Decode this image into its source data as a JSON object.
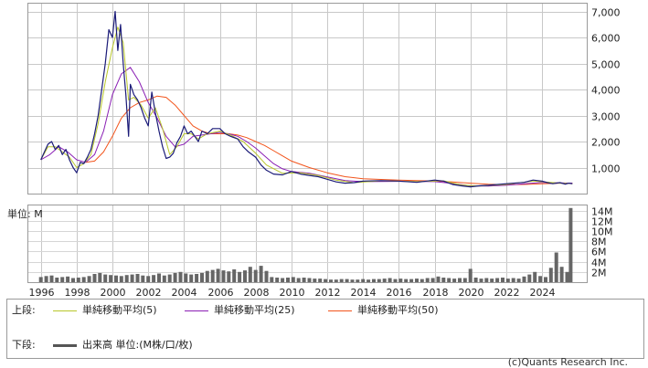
{
  "chart_data": [
    {
      "type": "line",
      "panel": "price",
      "ylim": [
        0,
        7300
      ],
      "y_ticks": [
        1000,
        2000,
        3000,
        4000,
        5000,
        6000,
        7000
      ],
      "y_tick_labels": [
        "1,000",
        "2,000",
        "3,000",
        "4,000",
        "5,000",
        "6,000",
        "7,000"
      ],
      "xlim": [
        1995.3,
        2026.5
      ],
      "x_ticks": [
        1996,
        1998,
        2000,
        2002,
        2004,
        2006,
        2008,
        2010,
        2012,
        2014,
        2016,
        2018,
        2020,
        2022,
        2024
      ],
      "x_tick_labels": [
        "1996",
        "1998",
        "2000",
        "2002",
        "2004",
        "2006",
        "2008",
        "2010",
        "2012",
        "2014",
        "2016",
        "2018",
        "2020",
        "2022",
        "2024"
      ],
      "grid": true,
      "series": [
        {
          "name": "price",
          "color": "#1b1b78",
          "x": [
            1996.0,
            1996.2,
            1996.4,
            1996.6,
            1996.8,
            1997.0,
            1997.2,
            1997.4,
            1997.6,
            1997.8,
            1998.0,
            1998.2,
            1998.4,
            1998.6,
            1998.8,
            1999.0,
            1999.2,
            1999.4,
            1999.6,
            1999.8,
            2000.0,
            2000.15,
            2000.3,
            2000.45,
            2000.6,
            2000.75,
            2000.9,
            2001.0,
            2001.2,
            2001.4,
            2001.6,
            2001.8,
            2002.0,
            2002.2,
            2002.4,
            2002.6,
            2002.8,
            2003.0,
            2003.2,
            2003.4,
            2003.6,
            2003.8,
            2004.0,
            2004.2,
            2004.4,
            2004.6,
            2004.8,
            2005.0,
            2005.3,
            2005.6,
            2006.0,
            2006.3,
            2006.6,
            2007.0,
            2007.3,
            2007.6,
            2008.0,
            2008.3,
            2008.6,
            2009.0,
            2009.5,
            2010.0,
            2010.5,
            2011.0,
            2011.5,
            2012.0,
            2012.5,
            2013.0,
            2013.5,
            2014.0,
            2015.0,
            2016.0,
            2017.0,
            2018.0,
            2018.5,
            2019.0,
            2019.5,
            2020.0,
            2020.5,
            2021.0,
            2022.0,
            2023.0,
            2023.5,
            2024.0,
            2024.3,
            2024.6,
            2025.0,
            2025.3,
            2025.5,
            2025.7
          ],
          "y": [
            1300,
            1600,
            1900,
            2000,
            1700,
            1850,
            1500,
            1700,
            1300,
            1000,
            800,
            1200,
            1150,
            1400,
            1700,
            2300,
            3000,
            4000,
            5000,
            6300,
            6000,
            7000,
            5500,
            6500,
            5000,
            3800,
            2200,
            4200,
            3800,
            3600,
            3300,
            2900,
            2600,
            3900,
            3100,
            2400,
            1800,
            1350,
            1400,
            1550,
            1950,
            2200,
            2600,
            2300,
            2400,
            2200,
            2000,
            2400,
            2300,
            2500,
            2500,
            2300,
            2200,
            2100,
            1800,
            1600,
            1400,
            1100,
            900,
            750,
            720,
            850,
            750,
            700,
            650,
            550,
            450,
            400,
            420,
            480,
            500,
            480,
            430,
            520,
            480,
            350,
            300,
            260,
            300,
            320,
            380,
            430,
            520,
            480,
            420,
            380,
            420,
            360,
            400,
            380
          ]
        },
        {
          "name": "単純移動平均(5)",
          "color": "#b8c62a",
          "x": [
            1996.0,
            1996.4,
            1996.8,
            1997.2,
            1997.6,
            1998.0,
            1998.4,
            1998.8,
            1999.2,
            1999.6,
            2000.0,
            2000.3,
            2000.6,
            2000.9,
            2001.2,
            2001.6,
            2002.0,
            2002.4,
            2002.8,
            2003.2,
            2003.6,
            2004.0,
            2004.4,
            2004.8,
            2005.3,
            2006.0,
            2006.6,
            2007.3,
            2008.0,
            2008.6,
            2009.5,
            2010.5,
            2011.5,
            2012.5,
            2013.5,
            2015.0,
            2017.0,
            2018.5,
            2019.5,
            2020.5,
            2022.0,
            2023.5,
            2024.3,
            2025.0,
            2025.5,
            2025.7
          ],
          "y": [
            1300,
            1800,
            1800,
            1600,
            1400,
            1000,
            1150,
            1500,
            2700,
            4300,
            5600,
            6400,
            5800,
            3600,
            3700,
            3400,
            2900,
            3300,
            2500,
            1500,
            1800,
            2300,
            2300,
            2100,
            2300,
            2400,
            2250,
            2000,
            1550,
            1100,
            780,
            800,
            700,
            520,
            420,
            490,
            460,
            490,
            330,
            290,
            350,
            480,
            440,
            400,
            390,
            380
          ]
        },
        {
          "name": "単純移動平均(25)",
          "color": "#8a1fb4",
          "x": [
            1996.0,
            1996.5,
            1997.0,
            1997.5,
            1998.0,
            1998.5,
            1999.0,
            1999.5,
            2000.0,
            2000.5,
            2001.0,
            2001.5,
            2002.0,
            2002.5,
            2003.0,
            2003.5,
            2004.0,
            2004.5,
            2005.0,
            2005.5,
            2006.0,
            2006.5,
            2007.0,
            2007.5,
            2008.0,
            2008.5,
            2009.0,
            2009.5,
            2010.0,
            2011.0,
            2012.0,
            2013.0,
            2014.0,
            2016.0,
            2018.0,
            2019.0,
            2020.0,
            2021.0,
            2022.0,
            2023.0,
            2024.0,
            2024.5,
            2025.0,
            2025.7
          ],
          "y": [
            1300,
            1500,
            1800,
            1600,
            1300,
            1200,
            1500,
            2400,
            3800,
            4600,
            4850,
            4300,
            3500,
            2900,
            2200,
            1800,
            1900,
            2200,
            2250,
            2300,
            2350,
            2300,
            2200,
            2000,
            1750,
            1450,
            1150,
            950,
            850,
            780,
            640,
            500,
            460,
            470,
            460,
            390,
            300,
            290,
            320,
            380,
            430,
            420,
            410,
            400
          ]
        },
        {
          "name": "単純移動平均(50)",
          "color": "#f2541b",
          "x": [
            1998.5,
            1999.0,
            1999.5,
            2000.0,
            2000.5,
            2001.0,
            2001.5,
            2002.0,
            2002.5,
            2003.0,
            2003.5,
            2004.0,
            2004.5,
            2005.0,
            2005.5,
            2006.0,
            2006.5,
            2007.0,
            2007.5,
            2008.0,
            2008.5,
            2009.0,
            2009.5,
            2010.0,
            2011.0,
            2012.0,
            2013.0,
            2014.0,
            2016.0,
            2018.0,
            2019.0,
            2020.0,
            2021.0,
            2022.0,
            2023.0,
            2024.0,
            2025.0,
            2025.7
          ],
          "y": [
            1200,
            1250,
            1600,
            2200,
            2900,
            3300,
            3500,
            3600,
            3750,
            3700,
            3400,
            3000,
            2600,
            2400,
            2300,
            2300,
            2300,
            2250,
            2150,
            2000,
            1850,
            1650,
            1450,
            1250,
            1000,
            800,
            650,
            570,
            520,
            480,
            450,
            400,
            360,
            340,
            350,
            380,
            400,
            400
          ]
        }
      ]
    },
    {
      "type": "bar",
      "panel": "volume",
      "unit_label": "単位: M",
      "ylim": [
        0,
        15
      ],
      "y_ticks": [
        2,
        4,
        6,
        8,
        10,
        12,
        14
      ],
      "y_tick_labels": [
        "2M",
        "4M",
        "6M",
        "8M",
        "10M",
        "12M",
        "14M"
      ],
      "x": [
        1996.0,
        1996.3,
        1996.6,
        1996.9,
        1997.2,
        1997.5,
        1997.8,
        1998.1,
        1998.4,
        1998.7,
        1999.0,
        1999.3,
        1999.6,
        1999.9,
        2000.2,
        2000.5,
        2000.8,
        2001.1,
        2001.4,
        2001.7,
        2002.0,
        2002.3,
        2002.6,
        2002.9,
        2003.2,
        2003.5,
        2003.8,
        2004.1,
        2004.4,
        2004.7,
        2005.0,
        2005.3,
        2005.6,
        2005.9,
        2006.2,
        2006.5,
        2006.8,
        2007.1,
        2007.4,
        2007.7,
        2008.0,
        2008.3,
        2008.6,
        2008.9,
        2009.2,
        2009.5,
        2009.8,
        2010.1,
        2010.4,
        2010.7,
        2011.0,
        2011.3,
        2011.6,
        2011.9,
        2012.2,
        2012.5,
        2012.8,
        2013.1,
        2013.4,
        2013.7,
        2014.0,
        2014.3,
        2014.6,
        2014.9,
        2015.2,
        2015.5,
        2015.8,
        2016.1,
        2016.4,
        2016.7,
        2017.0,
        2017.3,
        2017.6,
        2017.9,
        2018.2,
        2018.5,
        2018.8,
        2019.1,
        2019.4,
        2019.7,
        2020.0,
        2020.3,
        2020.6,
        2020.9,
        2021.2,
        2021.5,
        2021.8,
        2022.1,
        2022.4,
        2022.7,
        2023.0,
        2023.3,
        2023.6,
        2023.9,
        2024.2,
        2024.5,
        2024.8,
        2025.1,
        2025.4,
        2025.6
      ],
      "values": [
        1.0,
        1.2,
        1.3,
        0.9,
        1.0,
        1.1,
        0.8,
        0.9,
        1.0,
        1.2,
        1.6,
        1.8,
        1.5,
        1.4,
        1.3,
        1.2,
        1.4,
        1.5,
        1.6,
        1.3,
        1.2,
        1.4,
        1.7,
        1.3,
        1.5,
        1.8,
        2.0,
        1.7,
        1.5,
        1.6,
        1.8,
        2.2,
        2.4,
        2.6,
        2.3,
        2.1,
        2.5,
        2.0,
        2.3,
        3.0,
        2.4,
        3.2,
        2.2,
        1.0,
        0.9,
        0.8,
        0.9,
        1.0,
        0.8,
        0.9,
        0.8,
        0.7,
        0.7,
        0.6,
        0.5,
        0.5,
        0.6,
        0.6,
        0.5,
        0.5,
        0.6,
        0.5,
        0.6,
        0.6,
        0.7,
        0.8,
        0.6,
        0.7,
        0.6,
        0.6,
        0.7,
        0.6,
        0.8,
        0.8,
        1.1,
        0.9,
        0.8,
        0.7,
        0.8,
        0.8,
        2.6,
        0.9,
        0.7,
        0.8,
        0.7,
        0.8,
        0.9,
        0.7,
        0.8,
        0.7,
        1.1,
        1.5,
        2.0,
        1.2,
        1.0,
        2.8,
        5.8,
        3.0,
        2.0,
        14.5
      ],
      "color": "#666666"
    }
  ],
  "legend": {
    "upper_label": "上段:",
    "lower_label": "下段:",
    "items": [
      {
        "label": "単純移動平均(5)",
        "color": "#b8c62a"
      },
      {
        "label": "単純移動平均(25)",
        "color": "#8a1fb4"
      },
      {
        "label": "単純移動平均(50)",
        "color": "#f2541b"
      }
    ],
    "volume_label": "出来高 単位:(M株/口/枚)",
    "volume_color": "#555555"
  },
  "copyright": "(c)Quants Research Inc."
}
